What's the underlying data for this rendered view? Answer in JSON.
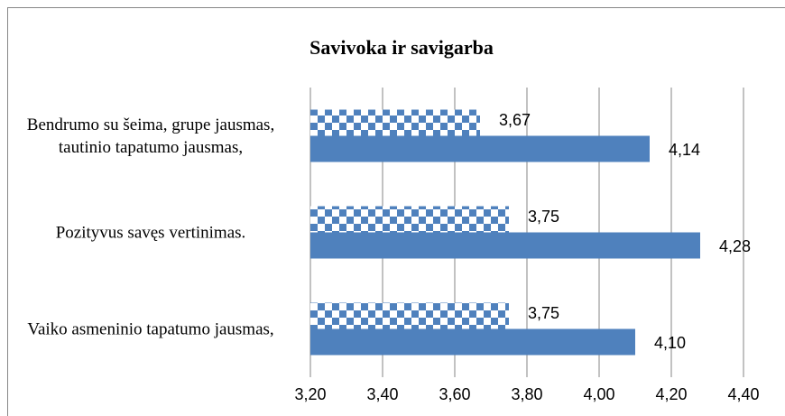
{
  "chart_data": {
    "type": "bar",
    "orientation": "horizontal",
    "title": "Savivoka ir savigarba",
    "categories": [
      "Bendrumo su šeima, grupe jausmas, tautinio tapatumo jausmas,",
      "Pozityvus savęs vertinimas.",
      "Vaiko asmeninio tapatumo jausmas,"
    ],
    "series": [
      {
        "color": "#4f81bd",
        "pattern": "checkerboard",
        "values": [
          3.67,
          3.75,
          3.75
        ],
        "value_labels": [
          "3,67",
          "3,75",
          "3,75"
        ]
      },
      {
        "color": "#4f81bd",
        "values": [
          4.14,
          4.28,
          4.1
        ],
        "value_labels": [
          "4,14",
          "4,28",
          "4,10"
        ]
      }
    ],
    "xlim": [
      3.2,
      4.4
    ],
    "xticks": [
      {
        "value": 3.2,
        "label": "3,20"
      },
      {
        "value": 3.4,
        "label": "3,40"
      },
      {
        "value": 3.6,
        "label": "3,60"
      },
      {
        "value": 3.8,
        "label": "3,80"
      },
      {
        "value": 4.0,
        "label": "4,00"
      },
      {
        "value": 4.2,
        "label": "4,20"
      },
      {
        "value": 4.4,
        "label": "4,40"
      }
    ],
    "grid": true
  }
}
